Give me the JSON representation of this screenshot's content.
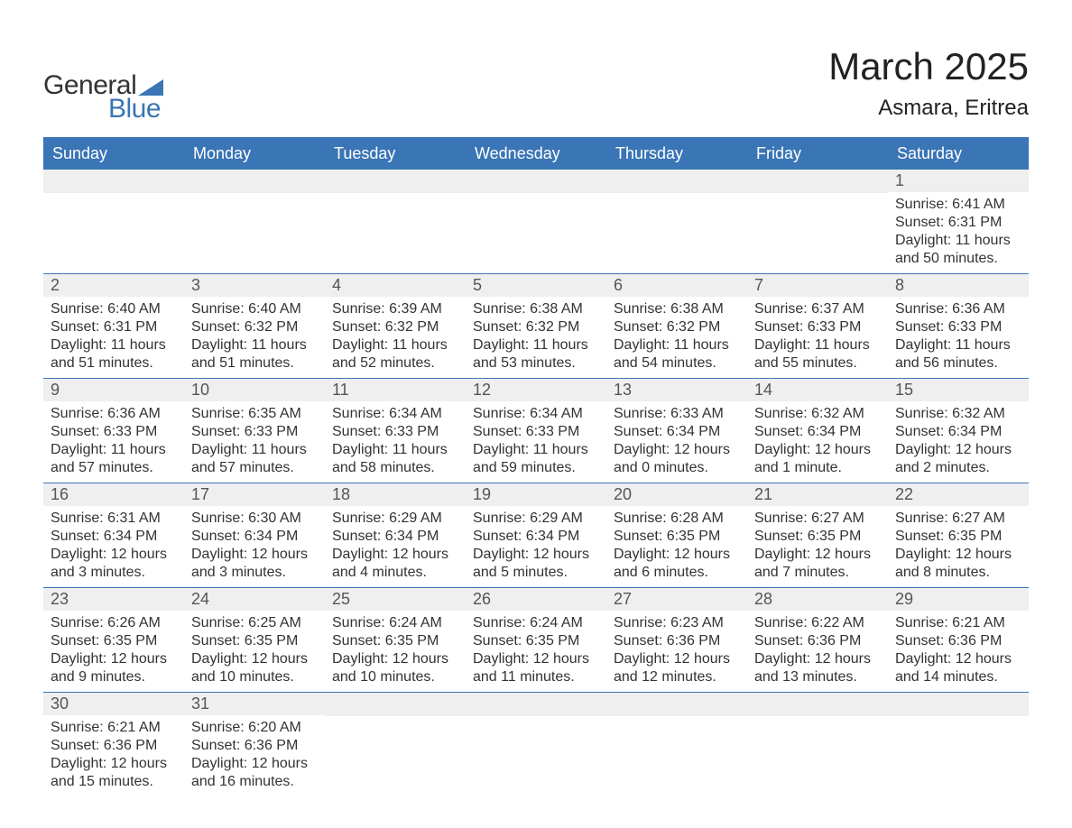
{
  "logo": {
    "word1": "General",
    "word2": "Blue",
    "shape_color": "#3a75b5",
    "text_color_dark": "#333333"
  },
  "title": {
    "month": "March 2025",
    "location": "Asmara, Eritrea"
  },
  "colors": {
    "header_bg": "#3a75b5",
    "header_text": "#ffffff",
    "daynum_bg": "#efefef",
    "daynum_text": "#555555",
    "body_text": "#333333",
    "divider": "#3a75b5",
    "page_bg": "#ffffff"
  },
  "typography": {
    "title_fontsize_pt": 32,
    "location_fontsize_pt": 18,
    "header_fontsize_pt": 14,
    "daynum_fontsize_pt": 14,
    "body_fontsize_pt": 12
  },
  "days_of_week": [
    "Sunday",
    "Monday",
    "Tuesday",
    "Wednesday",
    "Thursday",
    "Friday",
    "Saturday"
  ],
  "weeks": [
    [
      {
        "empty": true
      },
      {
        "empty": true
      },
      {
        "empty": true
      },
      {
        "empty": true
      },
      {
        "empty": true
      },
      {
        "empty": true
      },
      {
        "day": "1",
        "sunrise": "Sunrise: 6:41 AM",
        "sunset": "Sunset: 6:31 PM",
        "daylight": "Daylight: 11 hours and 50 minutes."
      }
    ],
    [
      {
        "day": "2",
        "sunrise": "Sunrise: 6:40 AM",
        "sunset": "Sunset: 6:31 PM",
        "daylight": "Daylight: 11 hours and 51 minutes."
      },
      {
        "day": "3",
        "sunrise": "Sunrise: 6:40 AM",
        "sunset": "Sunset: 6:32 PM",
        "daylight": "Daylight: 11 hours and 51 minutes."
      },
      {
        "day": "4",
        "sunrise": "Sunrise: 6:39 AM",
        "sunset": "Sunset: 6:32 PM",
        "daylight": "Daylight: 11 hours and 52 minutes."
      },
      {
        "day": "5",
        "sunrise": "Sunrise: 6:38 AM",
        "sunset": "Sunset: 6:32 PM",
        "daylight": "Daylight: 11 hours and 53 minutes."
      },
      {
        "day": "6",
        "sunrise": "Sunrise: 6:38 AM",
        "sunset": "Sunset: 6:32 PM",
        "daylight": "Daylight: 11 hours and 54 minutes."
      },
      {
        "day": "7",
        "sunrise": "Sunrise: 6:37 AM",
        "sunset": "Sunset: 6:33 PM",
        "daylight": "Daylight: 11 hours and 55 minutes."
      },
      {
        "day": "8",
        "sunrise": "Sunrise: 6:36 AM",
        "sunset": "Sunset: 6:33 PM",
        "daylight": "Daylight: 11 hours and 56 minutes."
      }
    ],
    [
      {
        "day": "9",
        "sunrise": "Sunrise: 6:36 AM",
        "sunset": "Sunset: 6:33 PM",
        "daylight": "Daylight: 11 hours and 57 minutes."
      },
      {
        "day": "10",
        "sunrise": "Sunrise: 6:35 AM",
        "sunset": "Sunset: 6:33 PM",
        "daylight": "Daylight: 11 hours and 57 minutes."
      },
      {
        "day": "11",
        "sunrise": "Sunrise: 6:34 AM",
        "sunset": "Sunset: 6:33 PM",
        "daylight": "Daylight: 11 hours and 58 minutes."
      },
      {
        "day": "12",
        "sunrise": "Sunrise: 6:34 AM",
        "sunset": "Sunset: 6:33 PM",
        "daylight": "Daylight: 11 hours and 59 minutes."
      },
      {
        "day": "13",
        "sunrise": "Sunrise: 6:33 AM",
        "sunset": "Sunset: 6:34 PM",
        "daylight": "Daylight: 12 hours and 0 minutes."
      },
      {
        "day": "14",
        "sunrise": "Sunrise: 6:32 AM",
        "sunset": "Sunset: 6:34 PM",
        "daylight": "Daylight: 12 hours and 1 minute."
      },
      {
        "day": "15",
        "sunrise": "Sunrise: 6:32 AM",
        "sunset": "Sunset: 6:34 PM",
        "daylight": "Daylight: 12 hours and 2 minutes."
      }
    ],
    [
      {
        "day": "16",
        "sunrise": "Sunrise: 6:31 AM",
        "sunset": "Sunset: 6:34 PM",
        "daylight": "Daylight: 12 hours and 3 minutes."
      },
      {
        "day": "17",
        "sunrise": "Sunrise: 6:30 AM",
        "sunset": "Sunset: 6:34 PM",
        "daylight": "Daylight: 12 hours and 3 minutes."
      },
      {
        "day": "18",
        "sunrise": "Sunrise: 6:29 AM",
        "sunset": "Sunset: 6:34 PM",
        "daylight": "Daylight: 12 hours and 4 minutes."
      },
      {
        "day": "19",
        "sunrise": "Sunrise: 6:29 AM",
        "sunset": "Sunset: 6:34 PM",
        "daylight": "Daylight: 12 hours and 5 minutes."
      },
      {
        "day": "20",
        "sunrise": "Sunrise: 6:28 AM",
        "sunset": "Sunset: 6:35 PM",
        "daylight": "Daylight: 12 hours and 6 minutes."
      },
      {
        "day": "21",
        "sunrise": "Sunrise: 6:27 AM",
        "sunset": "Sunset: 6:35 PM",
        "daylight": "Daylight: 12 hours and 7 minutes."
      },
      {
        "day": "22",
        "sunrise": "Sunrise: 6:27 AM",
        "sunset": "Sunset: 6:35 PM",
        "daylight": "Daylight: 12 hours and 8 minutes."
      }
    ],
    [
      {
        "day": "23",
        "sunrise": "Sunrise: 6:26 AM",
        "sunset": "Sunset: 6:35 PM",
        "daylight": "Daylight: 12 hours and 9 minutes."
      },
      {
        "day": "24",
        "sunrise": "Sunrise: 6:25 AM",
        "sunset": "Sunset: 6:35 PM",
        "daylight": "Daylight: 12 hours and 10 minutes."
      },
      {
        "day": "25",
        "sunrise": "Sunrise: 6:24 AM",
        "sunset": "Sunset: 6:35 PM",
        "daylight": "Daylight: 12 hours and 10 minutes."
      },
      {
        "day": "26",
        "sunrise": "Sunrise: 6:24 AM",
        "sunset": "Sunset: 6:35 PM",
        "daylight": "Daylight: 12 hours and 11 minutes."
      },
      {
        "day": "27",
        "sunrise": "Sunrise: 6:23 AM",
        "sunset": "Sunset: 6:36 PM",
        "daylight": "Daylight: 12 hours and 12 minutes."
      },
      {
        "day": "28",
        "sunrise": "Sunrise: 6:22 AM",
        "sunset": "Sunset: 6:36 PM",
        "daylight": "Daylight: 12 hours and 13 minutes."
      },
      {
        "day": "29",
        "sunrise": "Sunrise: 6:21 AM",
        "sunset": "Sunset: 6:36 PM",
        "daylight": "Daylight: 12 hours and 14 minutes."
      }
    ],
    [
      {
        "day": "30",
        "sunrise": "Sunrise: 6:21 AM",
        "sunset": "Sunset: 6:36 PM",
        "daylight": "Daylight: 12 hours and 15 minutes."
      },
      {
        "day": "31",
        "sunrise": "Sunrise: 6:20 AM",
        "sunset": "Sunset: 6:36 PM",
        "daylight": "Daylight: 12 hours and 16 minutes."
      },
      {
        "empty": true
      },
      {
        "empty": true
      },
      {
        "empty": true
      },
      {
        "empty": true
      },
      {
        "empty": true
      }
    ]
  ]
}
